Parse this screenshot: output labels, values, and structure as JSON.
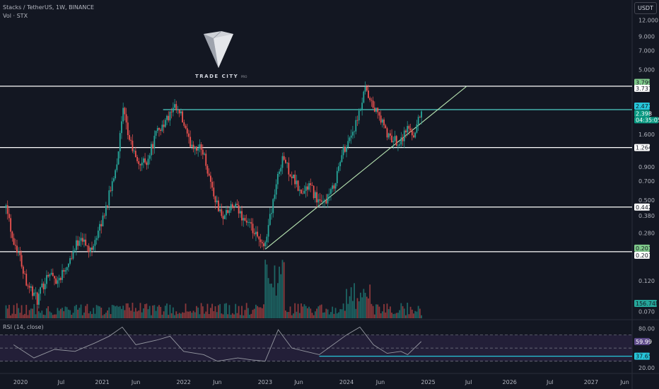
{
  "header": {
    "symbol_title": "Stacks / TetherUS, 1W, BINANCE",
    "volume_label": "Vol · STX",
    "currency_button": "USDT"
  },
  "logo": {
    "brand": "TRADE CITY",
    "sub": "PRO"
  },
  "rsi_panel": {
    "title": "RSI (14, close)"
  },
  "colors": {
    "background": "#131722",
    "up": "#26a69a",
    "down": "#ef5350",
    "level_line": "#ffffff",
    "resistance_line": "#4dd0c6",
    "trendline": "#b6e3b0",
    "rsi_line": "#9598a1",
    "rsi_band": "#2a2340",
    "rsi_support": "#26c6da"
  },
  "chart_data": [
    {
      "type": "candlestick",
      "title": "Stacks / TetherUS, 1W, BINANCE",
      "y_scale": "log",
      "ylim": [
        0.062,
        15.5
      ],
      "x_range": [
        "2019-10",
        "2027-07"
      ],
      "x_ticks": [
        "2020",
        "Jul",
        "2021",
        "Jun",
        "2022",
        "Jun",
        "2023",
        "Jun",
        "2024",
        "Jun",
        "2025",
        "Jul",
        "2026",
        "Jul",
        "2027",
        "Jun"
      ],
      "y_ticks": [
        12.0,
        9.0,
        7.0,
        5.0,
        1.6,
        0.9,
        0.7,
        0.5,
        0.38,
        0.28,
        0.12,
        0.07
      ],
      "y_tick_labels": [
        "12.000",
        "9.000",
        "7.000",
        "5.000",
        "1.600",
        "0.900",
        "0.700",
        "0.500",
        "0.380",
        "0.280",
        "0.120",
        "0.070"
      ],
      "path_points": [
        {
          "x": "2019-10-28",
          "y": 0.5
        },
        {
          "x": "2019-11-25",
          "y": 0.26
        },
        {
          "x": "2019-12-23",
          "y": 0.2
        },
        {
          "x": "2020-01-27",
          "y": 0.12
        },
        {
          "x": "2020-03-16",
          "y": 0.085
        },
        {
          "x": "2020-05-04",
          "y": 0.14
        },
        {
          "x": "2020-06-15",
          "y": 0.12
        },
        {
          "x": "2020-08-10",
          "y": 0.18
        },
        {
          "x": "2020-09-28",
          "y": 0.27
        },
        {
          "x": "2020-11-02",
          "y": 0.2
        },
        {
          "x": "2020-12-21",
          "y": 0.3
        },
        {
          "x": "2021-02-08",
          "y": 0.6
        },
        {
          "x": "2021-03-08",
          "y": 1.0
        },
        {
          "x": "2021-04-05",
          "y": 2.4
        },
        {
          "x": "2021-04-26",
          "y": 1.6
        },
        {
          "x": "2021-06-07",
          "y": 0.95
        },
        {
          "x": "2021-07-19",
          "y": 1.0
        },
        {
          "x": "2021-09-06",
          "y": 1.7
        },
        {
          "x": "2021-10-11",
          "y": 2.0
        },
        {
          "x": "2021-11-22",
          "y": 2.5
        },
        {
          "x": "2021-12-20",
          "y": 2.2
        },
        {
          "x": "2022-01-24",
          "y": 1.4
        },
        {
          "x": "2022-03-28",
          "y": 1.2
        },
        {
          "x": "2022-05-16",
          "y": 0.55
        },
        {
          "x": "2022-06-20",
          "y": 0.37
        },
        {
          "x": "2022-08-15",
          "y": 0.45
        },
        {
          "x": "2022-10-17",
          "y": 0.33
        },
        {
          "x": "2022-12-26",
          "y": 0.21
        },
        {
          "x": "2023-02-06",
          "y": 0.5
        },
        {
          "x": "2023-03-20",
          "y": 1.1
        },
        {
          "x": "2023-04-10",
          "y": 0.9
        },
        {
          "x": "2023-06-12",
          "y": 0.55
        },
        {
          "x": "2023-07-17",
          "y": 0.65
        },
        {
          "x": "2023-09-11",
          "y": 0.45
        },
        {
          "x": "2023-10-30",
          "y": 0.6
        },
        {
          "x": "2023-12-18",
          "y": 1.2
        },
        {
          "x": "2024-02-19",
          "y": 2.0
        },
        {
          "x": "2024-03-25",
          "y": 3.5
        },
        {
          "x": "2024-04-15",
          "y": 2.8
        },
        {
          "x": "2024-05-27",
          "y": 2.2
        },
        {
          "x": "2024-07-08",
          "y": 1.5
        },
        {
          "x": "2024-08-26",
          "y": 1.4
        },
        {
          "x": "2024-09-30",
          "y": 1.8
        },
        {
          "x": "2024-10-28",
          "y": 1.6
        },
        {
          "x": "2024-12-02",
          "y": 2.398
        }
      ],
      "horizontal_levels": [
        {
          "label": "3.737",
          "value": 3.737,
          "style": "level"
        },
        {
          "label": "2.471",
          "value": 2.471,
          "style": "resistance"
        },
        {
          "label": "1.264",
          "value": 1.264,
          "style": "level"
        },
        {
          "label": "0.442",
          "value": 0.442,
          "style": "level"
        },
        {
          "label": "0.201",
          "value": 0.201,
          "style": "level"
        }
      ],
      "trendline": {
        "from": {
          "x": "2023-01-02",
          "y": 0.21
        },
        "to": {
          "x": "2025-06-23",
          "y": 3.737
        }
      },
      "price_tags": [
        {
          "label": "3.799",
          "value": 3.799,
          "style": "green"
        },
        {
          "label": "3.737",
          "value": 3.737,
          "style": "white"
        },
        {
          "label": "2.471",
          "value": 2.471,
          "style": "teal"
        },
        {
          "label": "2.398",
          "value": 2.398,
          "style": "current"
        },
        {
          "label": "1.264",
          "value": 1.264,
          "style": "white"
        },
        {
          "label": "0.442",
          "value": 0.442,
          "style": "white"
        },
        {
          "label": "0.201",
          "value": 0.201,
          "style": "green"
        },
        {
          "label": "0.201",
          "value": 0.201,
          "style": "white"
        }
      ],
      "countdown": "04:35:05",
      "volume_tag": "156.74M"
    },
    {
      "type": "line",
      "title": "RSI (14, close)",
      "ylim": [
        20,
        90
      ],
      "y_ticks": [
        80.0,
        20.0
      ],
      "y_tick_labels": [
        "80.00",
        "20.00"
      ],
      "band": [
        30,
        70
      ],
      "series": [
        {
          "x": [
            "2019-12",
            "2020-03",
            "2020-06",
            "2020-09",
            "2020-12",
            "2021-02",
            "2021-04",
            "2021-06",
            "2021-09",
            "2021-11",
            "2022-01",
            "2022-04",
            "2022-06",
            "2022-09",
            "2022-11",
            "2023-01",
            "2023-03",
            "2023-05",
            "2023-07",
            "2023-09",
            "2023-11",
            "2024-01",
            "2024-03",
            "2024-05",
            "2024-07",
            "2024-09",
            "2024-10",
            "2024-12"
          ],
          "values": [
            55,
            35,
            48,
            45,
            58,
            68,
            82,
            55,
            62,
            68,
            45,
            40,
            30,
            35,
            32,
            30,
            78,
            50,
            45,
            40,
            55,
            70,
            82,
            55,
            42,
            45,
            40,
            59.99
          ]
        }
      ],
      "current_tag": "59.99",
      "support_tag": "37.65",
      "support_value": 37.65
    }
  ]
}
